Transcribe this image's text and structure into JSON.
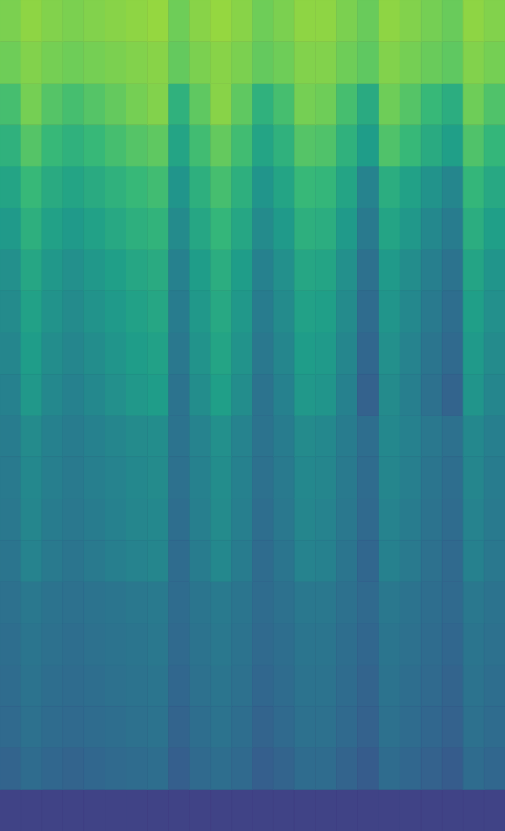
{
  "chart_data": {
    "type": "heatmap",
    "tick_labels": false,
    "zlim": [
      0,
      1
    ],
    "z": [
      [
        0.8,
        0.83,
        0.81,
        0.8,
        0.81,
        0.82,
        0.83,
        0.84,
        0.78,
        0.82,
        0.84,
        0.82,
        0.78,
        0.8,
        0.83,
        0.83,
        0.8,
        0.77,
        0.83,
        0.81,
        0.79,
        0.77,
        0.83,
        0.81
      ],
      [
        0.78,
        0.81,
        0.79,
        0.78,
        0.79,
        0.8,
        0.81,
        0.82,
        0.76,
        0.8,
        0.82,
        0.8,
        0.76,
        0.78,
        0.81,
        0.81,
        0.78,
        0.75,
        0.81,
        0.79,
        0.77,
        0.75,
        0.81,
        0.79
      ],
      [
        0.7,
        0.79,
        0.73,
        0.7,
        0.73,
        0.76,
        0.79,
        0.81,
        0.64,
        0.75,
        0.82,
        0.75,
        0.64,
        0.7,
        0.79,
        0.78,
        0.7,
        0.61,
        0.78,
        0.73,
        0.67,
        0.62,
        0.78,
        0.72
      ],
      [
        0.64,
        0.73,
        0.67,
        0.64,
        0.67,
        0.7,
        0.73,
        0.75,
        0.58,
        0.69,
        0.76,
        0.69,
        0.58,
        0.64,
        0.73,
        0.72,
        0.64,
        0.55,
        0.72,
        0.67,
        0.61,
        0.56,
        0.72,
        0.66
      ],
      [
        0.58,
        0.67,
        0.61,
        0.58,
        0.61,
        0.64,
        0.67,
        0.69,
        0.52,
        0.63,
        0.7,
        0.63,
        0.52,
        0.58,
        0.67,
        0.66,
        0.58,
        0.45,
        0.62,
        0.57,
        0.51,
        0.46,
        0.66,
        0.6
      ],
      [
        0.54,
        0.63,
        0.57,
        0.54,
        0.57,
        0.6,
        0.63,
        0.65,
        0.48,
        0.59,
        0.66,
        0.59,
        0.48,
        0.54,
        0.63,
        0.62,
        0.54,
        0.41,
        0.58,
        0.53,
        0.47,
        0.42,
        0.62,
        0.56
      ],
      [
        0.5,
        0.59,
        0.53,
        0.5,
        0.53,
        0.56,
        0.59,
        0.61,
        0.44,
        0.55,
        0.62,
        0.55,
        0.44,
        0.5,
        0.59,
        0.58,
        0.5,
        0.37,
        0.54,
        0.49,
        0.43,
        0.38,
        0.58,
        0.52
      ],
      [
        0.48,
        0.57,
        0.51,
        0.48,
        0.51,
        0.54,
        0.57,
        0.59,
        0.42,
        0.53,
        0.6,
        0.53,
        0.42,
        0.48,
        0.57,
        0.56,
        0.48,
        0.35,
        0.52,
        0.47,
        0.41,
        0.36,
        0.56,
        0.5
      ],
      [
        0.46,
        0.55,
        0.49,
        0.46,
        0.49,
        0.52,
        0.55,
        0.57,
        0.4,
        0.51,
        0.58,
        0.51,
        0.4,
        0.46,
        0.55,
        0.54,
        0.46,
        0.33,
        0.5,
        0.45,
        0.39,
        0.34,
        0.54,
        0.48
      ],
      [
        0.44,
        0.53,
        0.47,
        0.44,
        0.47,
        0.5,
        0.53,
        0.55,
        0.38,
        0.49,
        0.56,
        0.49,
        0.38,
        0.44,
        0.53,
        0.52,
        0.44,
        0.31,
        0.48,
        0.43,
        0.37,
        0.32,
        0.52,
        0.46
      ],
      [
        0.42,
        0.48,
        0.44,
        0.42,
        0.44,
        0.46,
        0.48,
        0.49,
        0.38,
        0.45,
        0.5,
        0.45,
        0.38,
        0.42,
        0.48,
        0.47,
        0.42,
        0.36,
        0.47,
        0.44,
        0.4,
        0.37,
        0.47,
        0.43
      ],
      [
        0.41,
        0.47,
        0.43,
        0.41,
        0.43,
        0.45,
        0.47,
        0.48,
        0.37,
        0.44,
        0.49,
        0.44,
        0.37,
        0.41,
        0.47,
        0.46,
        0.41,
        0.35,
        0.46,
        0.43,
        0.39,
        0.36,
        0.46,
        0.42
      ],
      [
        0.4,
        0.46,
        0.42,
        0.4,
        0.42,
        0.44,
        0.46,
        0.47,
        0.36,
        0.43,
        0.48,
        0.43,
        0.36,
        0.4,
        0.46,
        0.45,
        0.4,
        0.34,
        0.45,
        0.42,
        0.38,
        0.35,
        0.45,
        0.41
      ],
      [
        0.39,
        0.45,
        0.41,
        0.39,
        0.41,
        0.43,
        0.45,
        0.46,
        0.35,
        0.42,
        0.47,
        0.42,
        0.35,
        0.39,
        0.45,
        0.44,
        0.39,
        0.33,
        0.44,
        0.41,
        0.37,
        0.34,
        0.44,
        0.4
      ],
      [
        0.37,
        0.4,
        0.38,
        0.37,
        0.38,
        0.39,
        0.4,
        0.41,
        0.35,
        0.39,
        0.41,
        0.39,
        0.35,
        0.37,
        0.4,
        0.4,
        0.37,
        0.34,
        0.4,
        0.38,
        0.36,
        0.34,
        0.4,
        0.38
      ],
      [
        0.36,
        0.39,
        0.37,
        0.36,
        0.37,
        0.38,
        0.39,
        0.4,
        0.34,
        0.38,
        0.4,
        0.38,
        0.34,
        0.36,
        0.39,
        0.39,
        0.36,
        0.33,
        0.39,
        0.37,
        0.35,
        0.33,
        0.39,
        0.37
      ],
      [
        0.35,
        0.38,
        0.36,
        0.35,
        0.36,
        0.37,
        0.38,
        0.39,
        0.33,
        0.37,
        0.39,
        0.37,
        0.33,
        0.35,
        0.38,
        0.38,
        0.35,
        0.32,
        0.38,
        0.36,
        0.34,
        0.32,
        0.38,
        0.36
      ],
      [
        0.34,
        0.37,
        0.35,
        0.34,
        0.35,
        0.36,
        0.37,
        0.38,
        0.32,
        0.36,
        0.38,
        0.36,
        0.32,
        0.34,
        0.37,
        0.37,
        0.34,
        0.31,
        0.37,
        0.35,
        0.33,
        0.31,
        0.37,
        0.35
      ],
      [
        0.32,
        0.35,
        0.33,
        0.32,
        0.33,
        0.34,
        0.35,
        0.36,
        0.3,
        0.34,
        0.36,
        0.34,
        0.3,
        0.32,
        0.35,
        0.35,
        0.32,
        0.29,
        0.35,
        0.33,
        0.31,
        0.29,
        0.35,
        0.33
      ],
      [
        0.2,
        0.2,
        0.2,
        0.2,
        0.2,
        0.2,
        0.2,
        0.2,
        0.2,
        0.2,
        0.2,
        0.2,
        0.2,
        0.2,
        0.2,
        0.2,
        0.2,
        0.2,
        0.2,
        0.2,
        0.2,
        0.2,
        0.2,
        0.2
      ]
    ]
  }
}
